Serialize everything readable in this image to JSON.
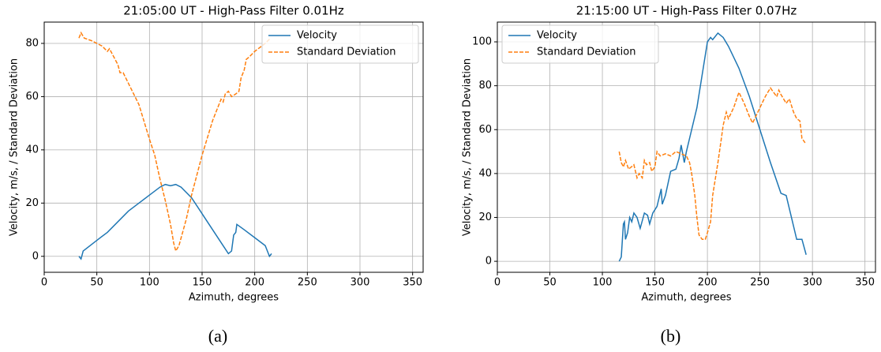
{
  "chart_data": [
    {
      "type": "line",
      "title": "21:05:00 UT - High-Pass Filter 0.01Hz",
      "xlabel": "Azimuth, degrees",
      "ylabel": "Velocity, m/s, / Standard Deviation",
      "caption": "(a)",
      "xlim": [
        0,
        360
      ],
      "xticks": [
        0,
        50,
        100,
        150,
        200,
        250,
        300,
        350
      ],
      "ylim": [
        -6,
        88
      ],
      "yticks": [
        0,
        20,
        40,
        60,
        80
      ],
      "grid": true,
      "legend": "upper right",
      "series": [
        {
          "name": "Velocity",
          "color": "#1f77b4",
          "linestyle": "solid",
          "x": [
            33,
            35,
            37,
            50,
            60,
            70,
            80,
            90,
            100,
            110,
            115,
            120,
            125,
            130,
            140,
            150,
            160,
            170,
            175,
            178,
            180,
            182,
            183,
            190,
            200,
            210,
            214,
            216
          ],
          "values": [
            0,
            -1,
            2,
            6,
            9,
            13,
            17,
            20,
            23,
            26,
            27,
            26.5,
            27,
            26,
            22,
            16,
            10,
            4,
            1,
            2,
            8,
            9,
            12,
            10,
            7,
            4,
            0,
            1
          ]
        },
        {
          "name": "Standard Deviation",
          "color": "#ff7f0e",
          "linestyle": "dashed",
          "x": [
            33,
            35,
            38,
            45,
            55,
            60,
            62,
            70,
            72,
            75,
            80,
            90,
            100,
            105,
            110,
            115,
            120,
            123,
            125,
            128,
            135,
            140,
            150,
            160,
            165,
            168,
            170,
            172,
            175,
            178,
            182,
            185,
            187,
            190,
            192,
            195,
            200,
            210,
            215
          ],
          "values": [
            82,
            84,
            82,
            81,
            79,
            77,
            78,
            72,
            69,
            69,
            65,
            57,
            44,
            38,
            29,
            21,
            12,
            5,
            2,
            4,
            14,
            23,
            38,
            51,
            56,
            59,
            58,
            61,
            62,
            60,
            61,
            62,
            67,
            70,
            74,
            75,
            77,
            80,
            82
          ]
        }
      ]
    },
    {
      "type": "line",
      "title": "21:15:00 UT - High-Pass Filter 0.07Hz",
      "xlabel": "Azimuth, degrees",
      "ylabel": "Velocity, m/s, / Standard Deviation",
      "caption": "(b)",
      "xlim": [
        0,
        360
      ],
      "xticks": [
        0,
        50,
        100,
        150,
        200,
        250,
        300,
        350
      ],
      "ylim": [
        -5,
        109
      ],
      "yticks": [
        0,
        20,
        40,
        60,
        80,
        100
      ],
      "grid": true,
      "legend": "upper left",
      "series": [
        {
          "name": "Velocity",
          "color": "#1f77b4",
          "linestyle": "solid",
          "x": [
            116,
            118,
            120,
            121,
            122,
            124,
            126,
            128,
            130,
            133,
            136,
            140,
            143,
            145,
            148,
            152,
            155,
            156,
            157,
            160,
            165,
            170,
            173,
            175,
            178,
            180,
            185,
            190,
            195,
            200,
            203,
            205,
            210,
            215,
            220,
            230,
            240,
            250,
            260,
            270,
            275,
            280,
            285,
            290,
            294
          ],
          "values": [
            0,
            2,
            17,
            18,
            10,
            13,
            20,
            18,
            22,
            20,
            15,
            22,
            21,
            17,
            22,
            25,
            31,
            33,
            26,
            30,
            41,
            42,
            47,
            53,
            45,
            50,
            60,
            70,
            85,
            100,
            102,
            101,
            104,
            102,
            98,
            88,
            75,
            60,
            45,
            31,
            30,
            20,
            10,
            10,
            3
          ]
        },
        {
          "name": "Standard Deviation",
          "color": "#ff7f0e",
          "linestyle": "dashed",
          "x": [
            116,
            118,
            120,
            122,
            125,
            130,
            133,
            135,
            138,
            140,
            142,
            145,
            147,
            150,
            152,
            155,
            160,
            165,
            170,
            175,
            180,
            183,
            185,
            188,
            190,
            192,
            195,
            198,
            200,
            203,
            205,
            210,
            213,
            215,
            218,
            220,
            225,
            230,
            235,
            240,
            243,
            245,
            250,
            255,
            260,
            263,
            266,
            268,
            270,
            275,
            278,
            282,
            285,
            288,
            290,
            293
          ],
          "values": [
            50,
            45,
            43,
            46,
            42,
            44,
            38,
            40,
            38,
            46,
            44,
            45,
            41,
            43,
            50,
            48,
            49,
            48,
            50,
            49,
            48,
            45,
            40,
            30,
            20,
            12,
            10,
            10,
            13,
            18,
            30,
            45,
            55,
            62,
            68,
            65,
            70,
            77,
            72,
            66,
            63,
            65,
            70,
            75,
            79,
            77,
            75,
            78,
            76,
            72,
            74,
            68,
            65,
            64,
            56,
            54
          ]
        }
      ]
    }
  ]
}
